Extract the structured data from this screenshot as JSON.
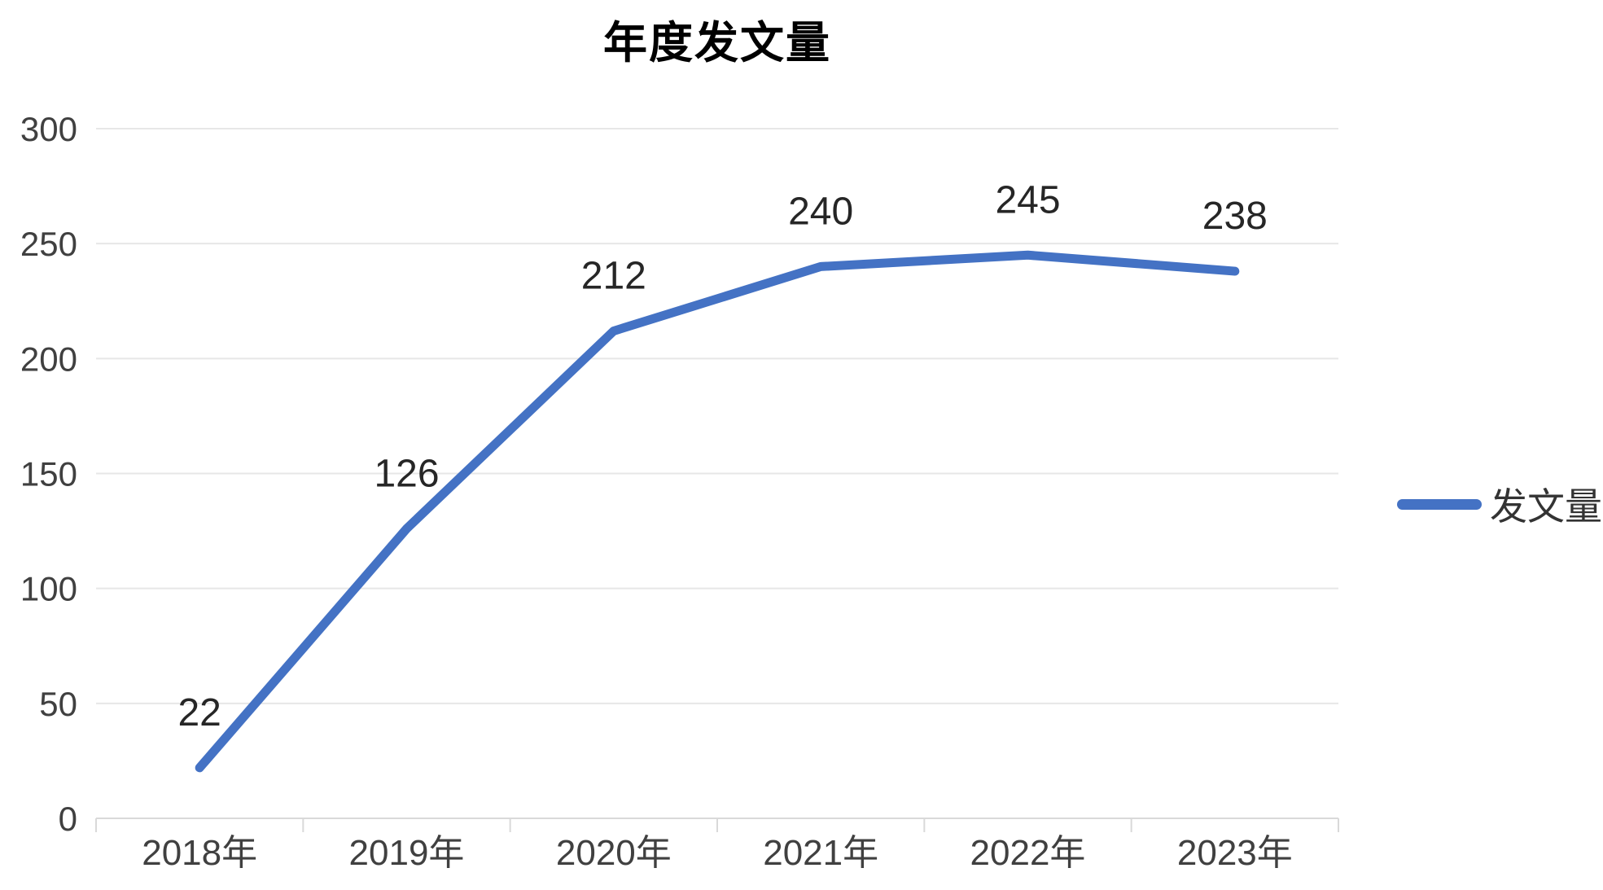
{
  "title": "年度发文量",
  "legend": {
    "label": "发文量"
  },
  "colors": {
    "line": "#4472C4",
    "gridline": "#E7E7E7",
    "axis": "#D9D9D9",
    "axis_text": "#404040",
    "data_label_text": "#262626",
    "title_text": "#000000"
  },
  "chart_data": {
    "type": "line",
    "title": "年度发文量",
    "categories": [
      "2018年",
      "2019年",
      "2020年",
      "2021年",
      "2022年",
      "2023年"
    ],
    "series": [
      {
        "name": "发文量",
        "values": [
          22,
          126,
          212,
          240,
          245,
          238
        ]
      }
    ],
    "xlabel": "",
    "ylabel": "",
    "ylim": [
      0,
      300
    ],
    "ytick_step": 50,
    "yticks": [
      0,
      50,
      100,
      150,
      200,
      250,
      300
    ],
    "grid": true,
    "data_labels": true,
    "markers": false,
    "legend_position": "right"
  }
}
